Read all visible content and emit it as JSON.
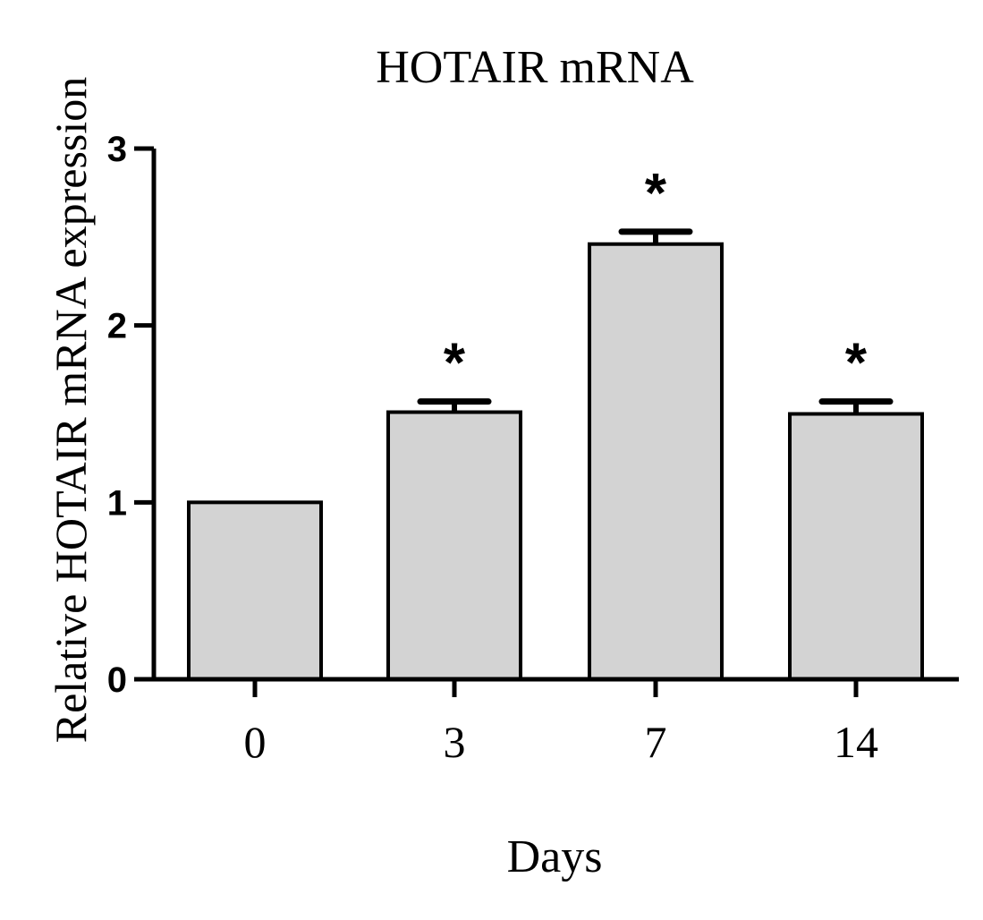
{
  "chart_data": {
    "type": "bar",
    "title": "HOTAIR mRNA",
    "xlabel": "Days",
    "ylabel": "Relative HOTAIR mRNA expression",
    "categories": [
      "0",
      "3",
      "7",
      "14"
    ],
    "values": [
      1.0,
      1.51,
      2.46,
      1.5
    ],
    "error": [
      0,
      0.06,
      0.07,
      0.07
    ],
    "significance": [
      "",
      "*",
      "*",
      "*"
    ],
    "ylim": [
      0,
      3
    ],
    "yticks": [
      "0",
      "1",
      "2",
      "3"
    ],
    "grid": false,
    "legend": "none",
    "bar_color": "#d3d3d3",
    "edge_color": "#000000"
  }
}
